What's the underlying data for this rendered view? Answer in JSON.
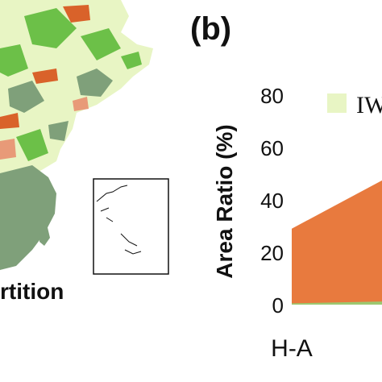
{
  "figure": {
    "panel_a_caption": "rtition",
    "panel_b_label": "(b)"
  },
  "map": {
    "description_colors": {
      "light": "#e8f5c4",
      "green": "#6cc048",
      "grey_green": "#7fa07a",
      "orange": "#d9622a",
      "salmon": "#e89a78"
    }
  },
  "chart_data": {
    "type": "area",
    "ylabel": "Area Ratio (%)",
    "ylim": [
      0,
      80
    ],
    "yticks": [
      "0",
      "20",
      "40",
      "60",
      "80"
    ],
    "categories": [
      "H-A"
    ],
    "legend": [
      {
        "name": "IW",
        "color": "#e8f5c4"
      }
    ],
    "series": [
      {
        "color": "#e87a3e",
        "points": [
          [
            0,
            29
          ],
          [
            1,
            55
          ]
        ]
      },
      {
        "color": "#9cc870",
        "points": [
          [
            0,
            0.5
          ],
          [
            1,
            1.5
          ]
        ]
      }
    ],
    "grid": false
  }
}
